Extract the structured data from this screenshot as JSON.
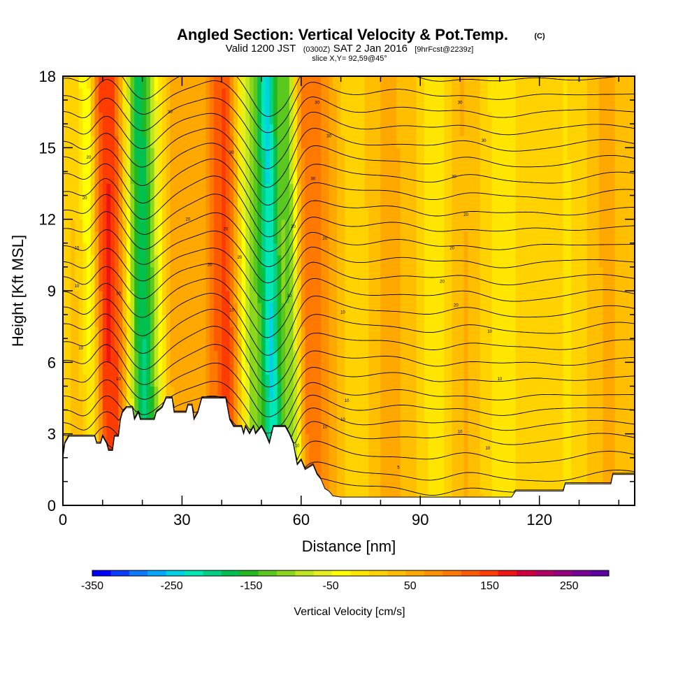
{
  "chart_data": {
    "type": "heatmap",
    "title": "Angled Section: Vertical Velocity & Pot.Temp.",
    "title_unit": "(C)",
    "subtitle_parts": [
      "Valid 1200 JST",
      "(0300Z)",
      "SAT 2 Jan 2016",
      "[9hrFcst@2239z]"
    ],
    "slice_label": "slice X,Y= 92,59@45°",
    "xlabel": "Distance [nm]",
    "ylabel": "Height [Kft MSL]",
    "xlim": [
      0,
      144
    ],
    "ylim": [
      0,
      18
    ],
    "x_ticks": [
      0,
      30,
      60,
      90,
      120
    ],
    "y_ticks": [
      0,
      3,
      6,
      9,
      12,
      15,
      18
    ],
    "colorbar": {
      "label": "Vertical Velocity [cm/s]",
      "range": [
        -350,
        300
      ],
      "tick_values": [
        -350,
        -250,
        -150,
        -50,
        50,
        150,
        250
      ],
      "colors": [
        "#0000ff",
        "#0a3cff",
        "#0a78ff",
        "#00a8ff",
        "#00d2e6",
        "#00e6b4",
        "#00d282",
        "#00c050",
        "#22b822",
        "#5ac81e",
        "#8cd61e",
        "#c0e61e",
        "#e6f01e",
        "#ffff00",
        "#ffe600",
        "#ffd200",
        "#ffbe00",
        "#ffa800",
        "#ff9000",
        "#ff7800",
        "#ff5a00",
        "#ff3c00",
        "#f01414",
        "#d2003c",
        "#b40064",
        "#96007f",
        "#780096",
        "#5a00a0"
      ]
    },
    "terrain_heights_kft": [
      [
        0,
        2.0
      ],
      [
        0.5,
        2.6
      ],
      [
        1.5,
        2.9
      ],
      [
        8,
        2.9
      ],
      [
        8.5,
        2.6
      ],
      [
        9.5,
        2.6
      ],
      [
        10,
        2.9
      ],
      [
        11,
        2.6
      ],
      [
        11.5,
        2.3
      ],
      [
        12.5,
        2.3
      ],
      [
        13,
        2.9
      ],
      [
        14,
        2.9
      ],
      [
        14.5,
        3.6
      ],
      [
        15,
        3.9
      ],
      [
        16,
        4.1
      ],
      [
        17.5,
        4.1
      ],
      [
        18,
        3.6
      ],
      [
        19,
        3.9
      ],
      [
        19.5,
        3.6
      ],
      [
        23,
        3.6
      ],
      [
        23.5,
        3.9
      ],
      [
        25,
        4.1
      ],
      [
        26,
        4.5
      ],
      [
        27.5,
        4.5
      ],
      [
        28,
        3.9
      ],
      [
        31,
        3.9
      ],
      [
        31.5,
        4.2
      ],
      [
        32.5,
        4.2
      ],
      [
        33,
        3.6
      ],
      [
        34,
        3.9
      ],
      [
        35,
        4.5
      ],
      [
        41,
        4.5
      ],
      [
        42,
        3.6
      ],
      [
        43,
        3.3
      ],
      [
        45,
        3.3
      ],
      [
        45.5,
        3.0
      ],
      [
        46,
        3.3
      ],
      [
        47,
        3.0
      ],
      [
        48,
        3.3
      ],
      [
        48.5,
        3.0
      ],
      [
        50,
        3.3
      ],
      [
        51,
        3.0
      ],
      [
        52,
        2.6
      ],
      [
        53,
        3.3
      ],
      [
        56,
        3.3
      ],
      [
        57,
        3.0
      ],
      [
        58,
        2.6
      ],
      [
        59,
        1.7
      ],
      [
        60,
        1.9
      ],
      [
        61,
        1.5
      ],
      [
        63,
        1.7
      ],
      [
        64,
        1.3
      ],
      [
        65,
        1.1
      ],
      [
        66,
        0.7
      ],
      [
        67,
        0.6
      ],
      [
        68,
        0.4
      ],
      [
        70,
        0.35
      ],
      [
        75,
        0.35
      ],
      [
        113,
        0.35
      ],
      [
        114,
        0.6
      ],
      [
        126,
        0.6
      ],
      [
        126.5,
        0.9
      ],
      [
        138,
        0.9
      ],
      [
        138.5,
        1.3
      ],
      [
        144,
        1.3
      ]
    ],
    "velocity_features": [
      {
        "x": 6,
        "w": 1.6,
        "v": -120
      },
      {
        "x": 10,
        "w": 3.5,
        "v": 120
      },
      {
        "x": 14,
        "w": 3,
        "v": 60
      },
      {
        "x": 18.5,
        "w": 2.8,
        "v": -200
      },
      {
        "x": 23,
        "w": 3,
        "v": -60
      },
      {
        "x": 28,
        "w": 5,
        "v": 60
      },
      {
        "x": 41,
        "w": 3.2,
        "v": 140
      },
      {
        "x": 46,
        "w": 2.8,
        "v": -130
      },
      {
        "x": 51.5,
        "w": 2.0,
        "v": -230
      },
      {
        "x": 56.5,
        "w": 1.6,
        "v": -150
      },
      {
        "x": 61,
        "w": 3,
        "v": 70
      },
      {
        "x": 66,
        "w": 4,
        "v": 50
      },
      {
        "x": 73,
        "w": 4,
        "v": -40
      },
      {
        "x": 80,
        "w": 6,
        "v": 40
      },
      {
        "x": 94,
        "w": 3,
        "v": -45
      },
      {
        "x": 100,
        "w": 4,
        "v": 35
      },
      {
        "x": 110,
        "w": 3.5,
        "v": -30
      },
      {
        "x": 128,
        "w": 4,
        "v": -25
      },
      {
        "x": 136,
        "w": 5,
        "v": 35
      }
    ],
    "isotherm_levels_kft": [
      0.6,
      1.2,
      2.0,
      2.8,
      3.4,
      4.0,
      4.6,
      5.3,
      6.0,
      6.7,
      7.4,
      8.1,
      8.8,
      9.5,
      10.2,
      10.9,
      11.6,
      12.3,
      13.0,
      13.7,
      14.4,
      15.1,
      15.8,
      16.5,
      17.2,
      17.9
    ],
    "contour_labels": [
      {
        "x": 27,
        "y": 16.5,
        "t": "30"
      },
      {
        "x": 64,
        "y": 16.9,
        "t": "30"
      },
      {
        "x": 100,
        "y": 16.9,
        "t": "30"
      },
      {
        "x": 67,
        "y": 15.5,
        "t": "30"
      },
      {
        "x": 106,
        "y": 15.3,
        "t": "30"
      },
      {
        "x": 6.5,
        "y": 14.6,
        "t": "20"
      },
      {
        "x": 42.5,
        "y": 14.8,
        "t": "30"
      },
      {
        "x": 63,
        "y": 13.7,
        "t": "30"
      },
      {
        "x": 98.5,
        "y": 13.8,
        "t": "30"
      },
      {
        "x": 5.5,
        "y": 12.9,
        "t": "20"
      },
      {
        "x": 31.5,
        "y": 12.0,
        "t": "20"
      },
      {
        "x": 101.5,
        "y": 12.2,
        "t": "20"
      },
      {
        "x": 41,
        "y": 11.6,
        "t": "20"
      },
      {
        "x": 58,
        "y": 11.7,
        "t": "20"
      },
      {
        "x": 66,
        "y": 11.2,
        "t": "20"
      },
      {
        "x": 3.5,
        "y": 10.8,
        "t": "10"
      },
      {
        "x": 98,
        "y": 10.8,
        "t": "20"
      },
      {
        "x": 44.5,
        "y": 10.4,
        "t": "20"
      },
      {
        "x": 37,
        "y": 10.1,
        "t": "20"
      },
      {
        "x": 95.5,
        "y": 9.4,
        "t": "20"
      },
      {
        "x": 3.5,
        "y": 9.2,
        "t": "10"
      },
      {
        "x": 14,
        "y": 8.9,
        "t": "10"
      },
      {
        "x": 57,
        "y": 8.8,
        "t": "10"
      },
      {
        "x": 99,
        "y": 8.4,
        "t": "20"
      },
      {
        "x": 42.5,
        "y": 8.2,
        "t": "10"
      },
      {
        "x": 70.5,
        "y": 8.1,
        "t": "10"
      },
      {
        "x": 107.5,
        "y": 7.3,
        "t": "10"
      },
      {
        "x": 4.5,
        "y": 6.6,
        "t": "10"
      },
      {
        "x": 14,
        "y": 5.3,
        "t": "10"
      },
      {
        "x": 110,
        "y": 5.3,
        "t": "10"
      },
      {
        "x": 71.5,
        "y": 4.4,
        "t": "10"
      },
      {
        "x": 70.5,
        "y": 3.6,
        "t": "10"
      },
      {
        "x": 66,
        "y": 3.3,
        "t": "10"
      },
      {
        "x": 100,
        "y": 3.1,
        "t": "10"
      },
      {
        "x": 59,
        "y": 2.5,
        "t": "10"
      },
      {
        "x": 107,
        "y": 2.4,
        "t": "10"
      },
      {
        "x": 84.5,
        "y": 1.6,
        "t": "5"
      }
    ]
  }
}
